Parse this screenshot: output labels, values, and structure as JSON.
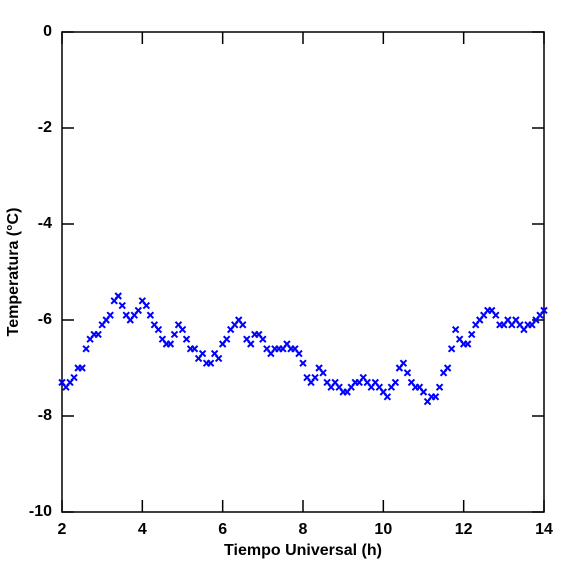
{
  "chart_data": {
    "type": "scatter",
    "x_label": "Tiempo Universal (h)",
    "y_label": "Temperatura (°C)",
    "xlim": [
      2,
      14
    ],
    "ylim": [
      -10,
      0
    ],
    "xticks": [
      2,
      4,
      6,
      8,
      10,
      12,
      14
    ],
    "yticks": [
      -10,
      -8,
      -6,
      -4,
      -2,
      0
    ],
    "series": [
      {
        "color": "#0000ff",
        "x": [
          2.0,
          2.1,
          2.2,
          2.3,
          2.4,
          2.5,
          2.6,
          2.7,
          2.8,
          2.9,
          3.0,
          3.1,
          3.2,
          3.3,
          3.4,
          3.5,
          3.6,
          3.7,
          3.8,
          3.9,
          4.0,
          4.1,
          4.2,
          4.3,
          4.4,
          4.5,
          4.6,
          4.7,
          4.8,
          4.9,
          5.0,
          5.1,
          5.2,
          5.3,
          5.4,
          5.5,
          5.6,
          5.7,
          5.8,
          5.9,
          6.0,
          6.1,
          6.2,
          6.3,
          6.4,
          6.5,
          6.6,
          6.7,
          6.8,
          6.9,
          7.0,
          7.1,
          7.2,
          7.3,
          7.4,
          7.5,
          7.6,
          7.7,
          7.8,
          7.9,
          8.0,
          8.1,
          8.2,
          8.3,
          8.4,
          8.5,
          8.6,
          8.7,
          8.8,
          8.9,
          9.0,
          9.1,
          9.2,
          9.3,
          9.4,
          9.5,
          9.6,
          9.7,
          9.8,
          9.9,
          10.0,
          10.1,
          10.2,
          10.3,
          10.4,
          10.5,
          10.6,
          10.7,
          10.8,
          10.9,
          11.0,
          11.1,
          11.2,
          11.3,
          11.4,
          11.5,
          11.6,
          11.7,
          11.8,
          11.9,
          12.0,
          12.1,
          12.2,
          12.3,
          12.4,
          12.5,
          12.6,
          12.7,
          12.8,
          12.9,
          13.0,
          13.1,
          13.2,
          13.3,
          13.4,
          13.5,
          13.6,
          13.7,
          13.8,
          13.9,
          14.0
        ],
        "values": [
          -7.3,
          -7.4,
          -7.3,
          -7.2,
          -7.0,
          -7.0,
          -6.6,
          -6.4,
          -6.3,
          -6.3,
          -6.1,
          -6.0,
          -5.9,
          -5.6,
          -5.5,
          -5.7,
          -5.9,
          -6.0,
          -5.9,
          -5.8,
          -5.6,
          -5.7,
          -5.9,
          -6.1,
          -6.2,
          -6.4,
          -6.5,
          -6.5,
          -6.3,
          -6.1,
          -6.2,
          -6.4,
          -6.6,
          -6.6,
          -6.8,
          -6.7,
          -6.9,
          -6.9,
          -6.7,
          -6.8,
          -6.5,
          -6.4,
          -6.2,
          -6.1,
          -6.0,
          -6.1,
          -6.4,
          -6.5,
          -6.3,
          -6.3,
          -6.4,
          -6.6,
          -6.7,
          -6.6,
          -6.6,
          -6.6,
          -6.5,
          -6.6,
          -6.6,
          -6.7,
          -6.9,
          -7.2,
          -7.3,
          -7.2,
          -7.0,
          -7.1,
          -7.3,
          -7.4,
          -7.3,
          -7.4,
          -7.5,
          -7.5,
          -7.4,
          -7.3,
          -7.3,
          -7.2,
          -7.3,
          -7.4,
          -7.3,
          -7.4,
          -7.5,
          -7.6,
          -7.4,
          -7.3,
          -7.0,
          -6.9,
          -7.1,
          -7.3,
          -7.4,
          -7.4,
          -7.5,
          -7.7,
          -7.6,
          -7.6,
          -7.4,
          -7.1,
          -7.0,
          -6.6,
          -6.2,
          -6.4,
          -6.5,
          -6.5,
          -6.3,
          -6.1,
          -6.0,
          -5.9,
          -5.8,
          -5.8,
          -5.9,
          -6.1,
          -6.1,
          -6.0,
          -6.1,
          -6.0,
          -6.1,
          -6.2,
          -6.1,
          -6.1,
          -6.0,
          -5.9,
          -5.8
        ]
      }
    ]
  }
}
